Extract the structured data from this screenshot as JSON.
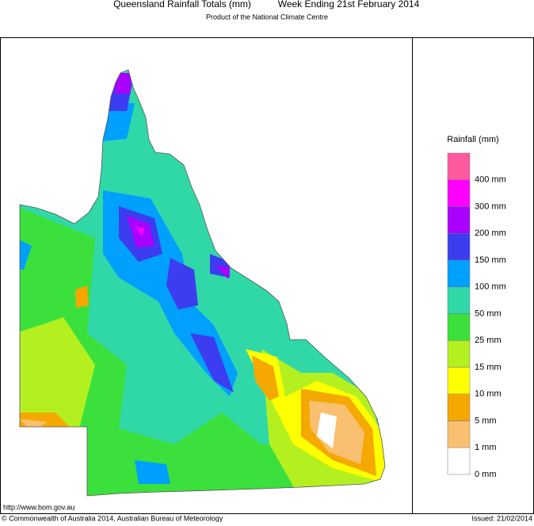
{
  "header": {
    "title": "Queensland Rainfall Totals (mm)",
    "period": "Week Ending 21st February 2014",
    "subtitle": "Product of the National Climate Centre"
  },
  "legend": {
    "title": "Rainfall (mm)",
    "items": [
      {
        "label": "400 mm",
        "color": "#ff5aa0"
      },
      {
        "label": "300 mm",
        "color": "#ff00ff"
      },
      {
        "label": "200 mm",
        "color": "#aa00ff"
      },
      {
        "label": "150 mm",
        "color": "#3c3cf0"
      },
      {
        "label": "100 mm",
        "color": "#00a0ff"
      },
      {
        "label": "50 mm",
        "color": "#30d8a8"
      },
      {
        "label": "25 mm",
        "color": "#3ce03c"
      },
      {
        "label": "15 mm",
        "color": "#b4f020"
      },
      {
        "label": "10 mm",
        "color": "#ffff00"
      },
      {
        "label": "5 mm",
        "color": "#f5a800"
      },
      {
        "label": "1 mm",
        "color": "#f8c070"
      },
      {
        "label": "0 mm",
        "color": "#ffffff"
      }
    ]
  },
  "footer": {
    "url": "http://www.bom.gov.au",
    "copyright": "© Commonwealth of Australia 2014, Australian Bureau of Meteorology",
    "issued": "Issued: 21/02/2014"
  }
}
